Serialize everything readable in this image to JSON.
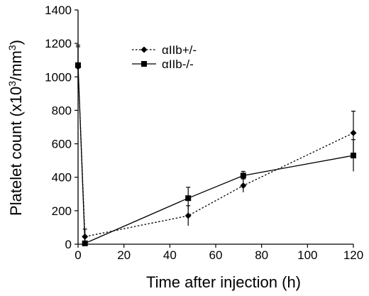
{
  "chart_data": {
    "type": "line",
    "xlabel": "Time after injection (h)",
    "ylabel_prefix": "Platelet count (x10",
    "ylabel_exp1": "3",
    "ylabel_mid": "/mm",
    "ylabel_exp2": "3",
    "ylabel_suffix": ")",
    "xlim": [
      0,
      120
    ],
    "ylim": [
      0,
      1400
    ],
    "xticks": [
      0,
      20,
      40,
      60,
      80,
      100,
      120
    ],
    "yticks": [
      0,
      200,
      400,
      600,
      800,
      1000,
      1200,
      1400
    ],
    "grid": false,
    "legend_position": "top-left",
    "series": [
      {
        "name": "αIIb+/-",
        "marker": "diamond",
        "line_style": "dotted",
        "color": "#000000",
        "x": [
          0,
          3,
          48,
          72,
          120
        ],
        "y": [
          1060,
          45,
          170,
          350,
          665
        ],
        "err": [
          130,
          45,
          60,
          40,
          130
        ]
      },
      {
        "name": "αIIb-/-",
        "marker": "square",
        "line_style": "solid",
        "color": "#000000",
        "x": [
          0,
          3,
          48,
          72,
          120
        ],
        "y": [
          1070,
          5,
          275,
          410,
          530
        ],
        "err": [
          110,
          5,
          65,
          25,
          95
        ]
      }
    ]
  }
}
